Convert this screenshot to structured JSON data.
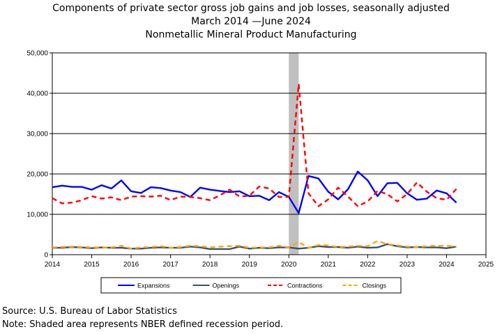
{
  "titles": {
    "line1": "Components of private sector gross job gains and job losses, seasonally adjusted",
    "line2": "March 2014 —June 2024",
    "line3": "Nonmetallic Mineral Product Manufacturing"
  },
  "footer": {
    "source": "Source: U.S. Bureau of Labor Statistics",
    "note": "Note: Shaded area represents NBER defined recession period."
  },
  "chart_data": {
    "type": "line",
    "title": "Components of private sector gross job gains and job losses, seasonally adjusted",
    "xlim": [
      2014,
      2025
    ],
    "ylim": [
      0,
      50000
    ],
    "xticks": [
      "2014",
      "2015",
      "2016",
      "2017",
      "2018",
      "2019",
      "2020",
      "2021",
      "2022",
      "2023",
      "2024",
      "2025"
    ],
    "yticks": [
      "0",
      "10,000",
      "20,000",
      "30,000",
      "40,000",
      "50,000"
    ],
    "grid": "horizontal",
    "legend_position": "bottom",
    "recession": {
      "start": 2020.0,
      "end": 2020.25,
      "color": "#c0c0c0"
    },
    "x": [
      2014.0,
      2014.25,
      2014.5,
      2014.75,
      2015.0,
      2015.25,
      2015.5,
      2015.75,
      2016.0,
      2016.25,
      2016.5,
      2016.75,
      2017.0,
      2017.25,
      2017.5,
      2017.75,
      2018.0,
      2018.25,
      2018.5,
      2018.75,
      2019.0,
      2019.25,
      2019.5,
      2019.75,
      2020.0,
      2020.25,
      2020.5,
      2020.75,
      2021.0,
      2021.25,
      2021.5,
      2021.75,
      2022.0,
      2022.25,
      2022.5,
      2022.75,
      2023.0,
      2023.25,
      2023.5,
      2023.75,
      2024.0,
      2024.25
    ],
    "series": [
      {
        "name": "Expansions",
        "color": "#0000ff",
        "dash": "",
        "width": 2.4,
        "values": [
          16700,
          17100,
          16800,
          16800,
          16100,
          17200,
          16400,
          18400,
          15700,
          15300,
          16700,
          16500,
          15900,
          15500,
          14300,
          16600,
          16100,
          15800,
          15500,
          15700,
          14500,
          14600,
          13500,
          15500,
          14300,
          10300,
          19500,
          18900,
          15600,
          13700,
          16200,
          20600,
          18400,
          14500,
          17700,
          17800,
          15200,
          13600,
          13900,
          15900,
          15200,
          12900
        ]
      },
      {
        "name": "Openings",
        "color": "#3a4f6e",
        "dash": "",
        "width": 2.4,
        "values": [
          1700,
          1700,
          1900,
          1800,
          1600,
          1800,
          1700,
          1700,
          1500,
          1500,
          1700,
          1800,
          1700,
          1700,
          2000,
          1800,
          1400,
          1400,
          1400,
          2000,
          1500,
          1700,
          1600,
          1800,
          1800,
          1500,
          1700,
          2100,
          1900,
          1900,
          1700,
          2000,
          1700,
          1800,
          2600,
          2100,
          1800,
          1900,
          1800,
          1800,
          1600,
          2000
        ]
      },
      {
        "name": "Contractions",
        "color": "#ff0000",
        "dash": "7,5",
        "width": 2.4,
        "values": [
          14000,
          12700,
          12900,
          13500,
          14500,
          13900,
          14200,
          13500,
          14400,
          14500,
          14400,
          14600,
          13500,
          14400,
          14300,
          14000,
          13500,
          14700,
          16100,
          14400,
          14600,
          16900,
          16400,
          14300,
          14300,
          42300,
          15200,
          12000,
          13700,
          16600,
          14400,
          12000,
          13200,
          15800,
          15000,
          13200,
          15000,
          17900,
          15600,
          14000,
          13600,
          16300
        ]
      },
      {
        "name": "Closings",
        "color": "#ffa500",
        "dash": "7,5",
        "width": 2.4,
        "values": [
          1800,
          1900,
          2000,
          1900,
          1800,
          1800,
          1800,
          2200,
          1500,
          1800,
          1900,
          2100,
          1700,
          1900,
          2200,
          2100,
          1800,
          2000,
          2100,
          2200,
          1700,
          1800,
          1800,
          2200,
          1800,
          3100,
          1700,
          2400,
          2300,
          1900,
          2000,
          2200,
          2100,
          3400,
          2600,
          2300,
          2000,
          1900,
          2100,
          2200,
          2200,
          2000
        ]
      }
    ]
  }
}
